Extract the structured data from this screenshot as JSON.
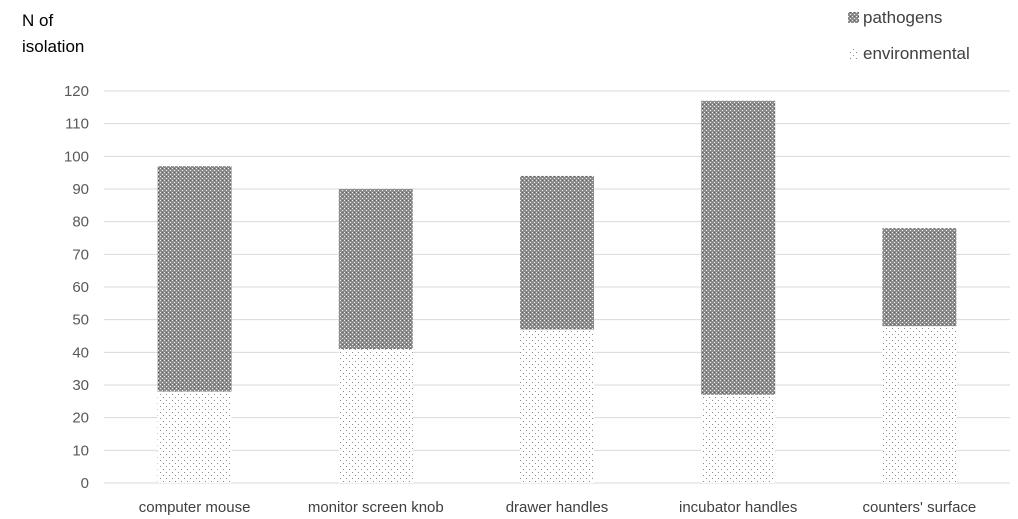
{
  "chart_data": {
    "type": "bar",
    "stacked": true,
    "title": "",
    "xlabel": "",
    "ylabel": "N of isolation",
    "ylabel_lines": [
      "N of",
      "isolation"
    ],
    "categories": [
      "computer mouse",
      "monitor screen knob",
      "drawer handles",
      "incubator handles",
      "counters' surface"
    ],
    "series": [
      {
        "name": "environmental",
        "values": [
          28,
          41,
          47,
          27,
          48
        ],
        "pattern": "dots-light"
      },
      {
        "name": "pathogens",
        "values": [
          69,
          49,
          47,
          90,
          30
        ],
        "pattern": "checker-dark"
      }
    ],
    "ylim": [
      0,
      120
    ],
    "yticks": [
      0,
      10,
      20,
      30,
      40,
      50,
      60,
      70,
      80,
      90,
      100,
      110,
      120
    ],
    "grid": true,
    "legend": {
      "position": "top-right",
      "order": [
        "pathogens",
        "environmental"
      ]
    },
    "colors": {
      "grid": "#d9d9d9",
      "axis": "#d9d9d9",
      "pathogens_base": "#8c8c8c",
      "pathogens_mark": "#f2f2f2",
      "environmental_base": "#ffffff",
      "environmental_mark": "#7f7f7f"
    }
  }
}
